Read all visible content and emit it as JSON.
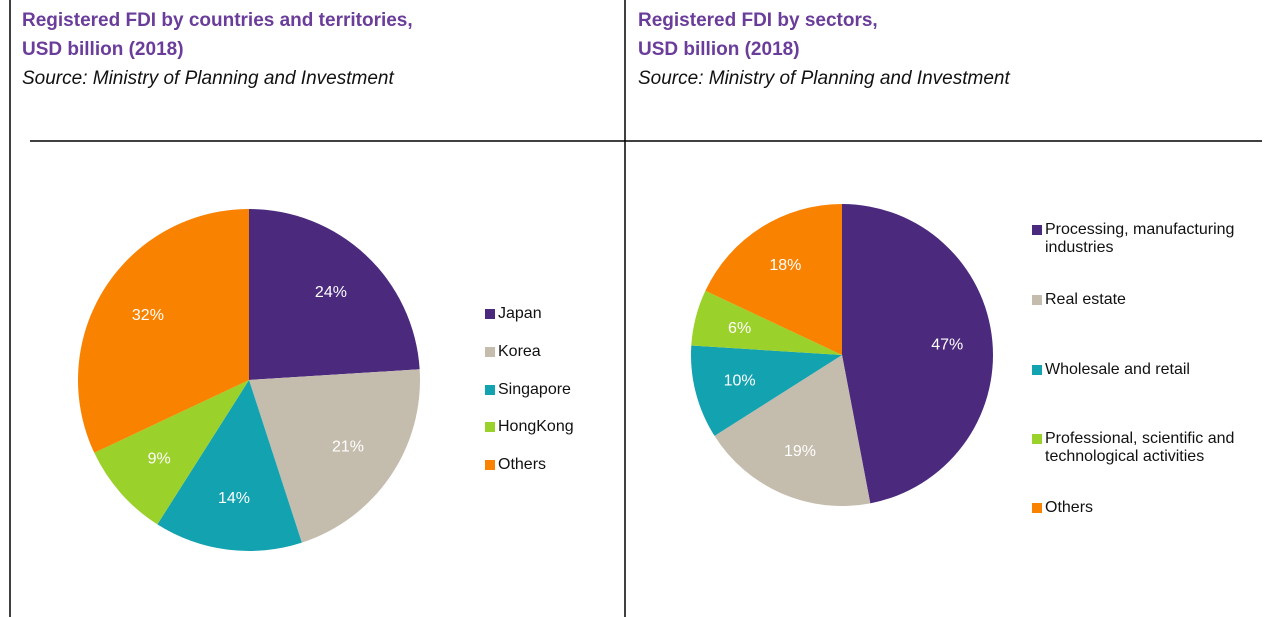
{
  "chart_data": [
    {
      "type": "pie",
      "title": [
        "Registered FDI by countries and territories,",
        "USD billion (2018)"
      ],
      "source": "Source: Ministry of Planning and Investment",
      "categories": [
        "Japan",
        "Korea",
        "Singapore",
        "HongKong",
        "Others"
      ],
      "values": [
        24,
        21,
        14,
        9,
        32
      ],
      "value_labels": [
        "24%",
        "21%",
        "14%",
        "9%",
        "32%"
      ],
      "colors": [
        "#4b2a7e",
        "#c4bcad",
        "#12a2b0",
        "#9bd12b",
        "#f98200"
      ]
    },
    {
      "type": "pie",
      "title": [
        "Registered FDI by sectors,",
        "USD billion (2018)"
      ],
      "source": "Source: Ministry of Planning and Investment",
      "categories": [
        "Processing, manufacturing industries",
        "Real estate",
        "Wholesale and retail",
        "Professional, scientific and technological activities",
        "Others"
      ],
      "values": [
        47,
        19,
        10,
        6,
        18
      ],
      "value_labels": [
        "47%",
        "19%",
        "10%",
        "6%",
        "18%"
      ],
      "colors": [
        "#4b2a7e",
        "#c4bcad",
        "#12a2b0",
        "#9bd12b",
        "#f98200"
      ]
    }
  ]
}
